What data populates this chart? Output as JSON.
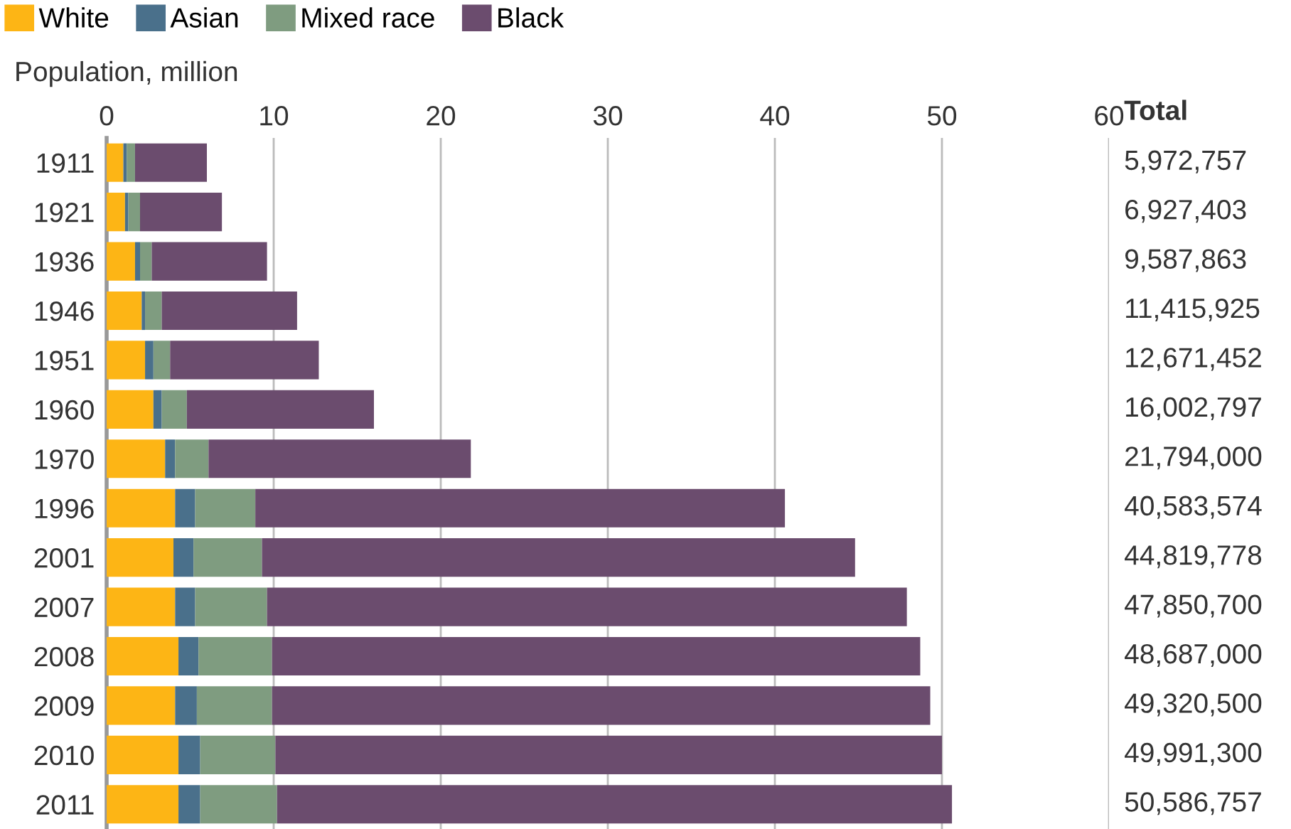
{
  "chart_data": {
    "type": "bar",
    "orientation": "horizontal",
    "stacked": true,
    "xlabel": "Population, million",
    "categories": [
      "1911",
      "1921",
      "1936",
      "1946",
      "1951",
      "1960",
      "1970",
      "1996",
      "2001",
      "2007",
      "2008",
      "2009",
      "2010",
      "2011"
    ],
    "series": [
      {
        "name": "White",
        "color": "#fdb515",
        "values": [
          1.0,
          1.1,
          1.7,
          2.1,
          2.3,
          2.8,
          3.5,
          4.1,
          4.0,
          4.1,
          4.3,
          4.1,
          4.3,
          4.3
        ]
      },
      {
        "name": "Asian",
        "color": "#4a708b",
        "values": [
          0.2,
          0.2,
          0.3,
          0.2,
          0.5,
          0.5,
          0.6,
          1.2,
          1.2,
          1.2,
          1.2,
          1.3,
          1.3,
          1.3
        ]
      },
      {
        "name": "Mixed race",
        "color": "#7f9c80",
        "values": [
          0.5,
          0.7,
          0.7,
          1.0,
          1.0,
          1.5,
          2.0,
          3.6,
          4.1,
          4.3,
          4.4,
          4.5,
          4.5,
          4.6
        ]
      },
      {
        "name": "Black",
        "color": "#6b4c6e",
        "values": [
          4.3,
          4.9,
          6.9,
          8.1,
          8.9,
          11.2,
          15.7,
          31.7,
          35.5,
          38.3,
          38.8,
          39.4,
          39.9,
          40.4
        ]
      }
    ],
    "annotations": [
      "Total",
      "5,972,757",
      "6,927,403",
      "9,587,863",
      "11,415,925",
      "12,671,452",
      "16,002,797",
      "21,794,000",
      "40,583,574",
      "44,819,778",
      "47,850,700",
      "48,687,000",
      "49,320,500",
      "49,991,300",
      "50,586,757"
    ],
    "xlim": [
      0,
      60
    ],
    "xticks": [
      0,
      10,
      20,
      30,
      40,
      50,
      60
    ],
    "grid": "x",
    "legend": "top left"
  }
}
